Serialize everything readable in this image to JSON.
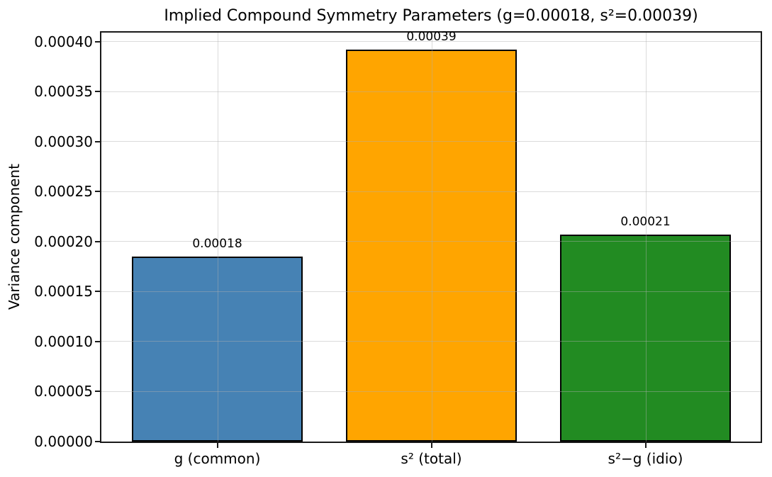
{
  "figure": {
    "background": "#ffffff"
  },
  "chart_data": {
    "type": "bar",
    "title": "Implied Compound Symmetry Parameters (g=0.00018, s²=0.00039)",
    "xlabel": "",
    "ylabel": "Variance component",
    "categories": [
      "g (common)",
      "s² (total)",
      "s²−g (idio)"
    ],
    "values": [
      0.000185,
      0.000392,
      0.000207
    ],
    "bar_labels": [
      "0.00018",
      "0.00039",
      "0.00021"
    ],
    "bar_colors": [
      "#4682b4",
      "#ffa500",
      "#228b22"
    ],
    "bar_edge_color": "#000000",
    "ylim": [
      0,
      0.000409
    ],
    "yticks": [
      0.0,
      5e-05,
      0.0001,
      0.00015,
      0.0002,
      0.00025,
      0.0003,
      0.00035,
      0.0004
    ],
    "ytick_labels": [
      "0.00000",
      "0.00005",
      "0.00010",
      "0.00015",
      "0.00020",
      "0.00025",
      "0.00030",
      "0.00035",
      "0.00040"
    ],
    "grid": true,
    "grid_color": "#b0b0b0",
    "grid_on_top_of_bars": true,
    "legend_position": "none"
  }
}
